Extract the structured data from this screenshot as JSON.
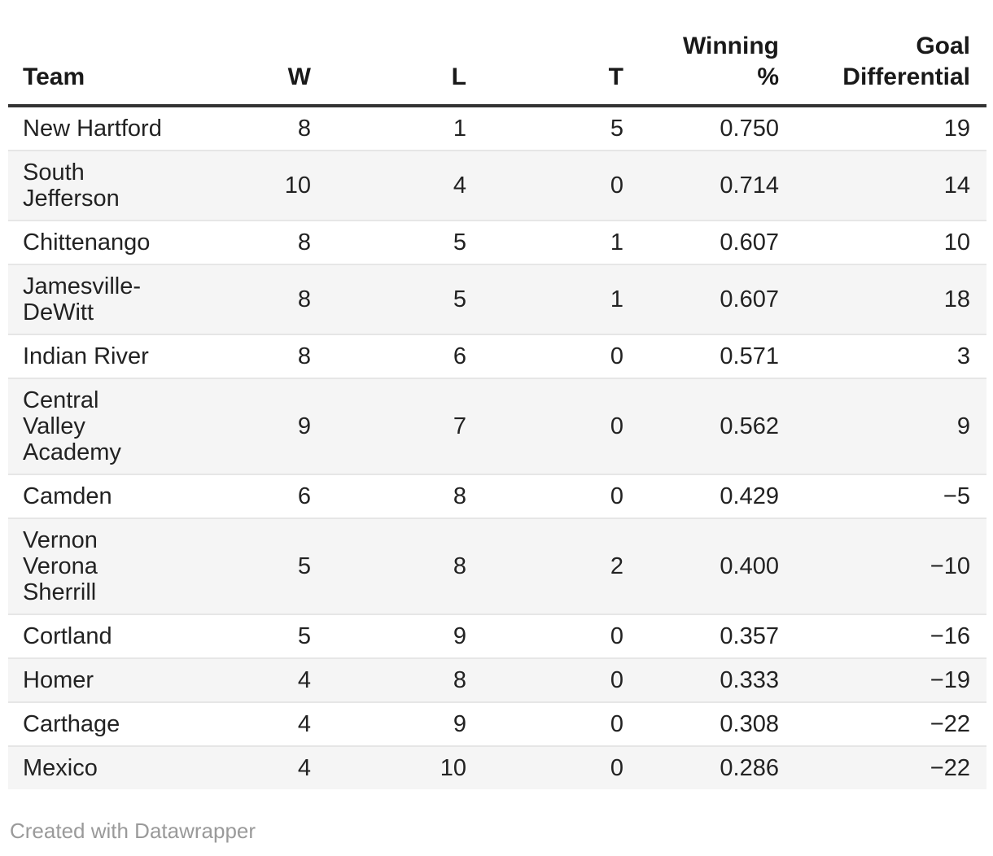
{
  "chart_data": {
    "type": "table",
    "columns": [
      {
        "label": "Team",
        "align": "left"
      },
      {
        "label": "W",
        "align": "right"
      },
      {
        "label": "L",
        "align": "right"
      },
      {
        "label": "T",
        "align": "right"
      },
      {
        "label": "Winning\n%",
        "align": "right"
      },
      {
        "label": "Goal\nDifferential",
        "align": "right"
      }
    ],
    "rows": [
      {
        "team": "New Hartford",
        "w": "8",
        "l": "1",
        "t": "5",
        "pct": "0.750",
        "gd": "19"
      },
      {
        "team": "South\nJefferson",
        "w": "10",
        "l": "4",
        "t": "0",
        "pct": "0.714",
        "gd": "14"
      },
      {
        "team": "Chittenango",
        "w": "8",
        "l": "5",
        "t": "1",
        "pct": "0.607",
        "gd": "10"
      },
      {
        "team": "Jamesville-\nDeWitt",
        "w": "8",
        "l": "5",
        "t": "1",
        "pct": "0.607",
        "gd": "18"
      },
      {
        "team": "Indian River",
        "w": "8",
        "l": "6",
        "t": "0",
        "pct": "0.571",
        "gd": "3"
      },
      {
        "team": "Central\nValley\nAcademy",
        "w": "9",
        "l": "7",
        "t": "0",
        "pct": "0.562",
        "gd": "9"
      },
      {
        "team": "Camden",
        "w": "6",
        "l": "8",
        "t": "0",
        "pct": "0.429",
        "gd": "−5"
      },
      {
        "team": "Vernon\nVerona\nSherrill",
        "w": "5",
        "l": "8",
        "t": "2",
        "pct": "0.400",
        "gd": "−10"
      },
      {
        "team": "Cortland",
        "w": "5",
        "l": "9",
        "t": "0",
        "pct": "0.357",
        "gd": "−16"
      },
      {
        "team": "Homer",
        "w": "4",
        "l": "8",
        "t": "0",
        "pct": "0.333",
        "gd": "−19"
      },
      {
        "team": "Carthage",
        "w": "4",
        "l": "9",
        "t": "0",
        "pct": "0.308",
        "gd": "−22"
      },
      {
        "team": "Mexico",
        "w": "4",
        "l": "10",
        "t": "0",
        "pct": "0.286",
        "gd": "−22"
      }
    ]
  },
  "footer": {
    "credit": "Created with Datawrapper"
  },
  "colors": {
    "header_rule": "#333333",
    "row_divider": "#e6e6e6",
    "stripe": "#f5f5f5",
    "text": "#222222",
    "header_text": "#191919",
    "footer_text": "#9a9a9a"
  }
}
